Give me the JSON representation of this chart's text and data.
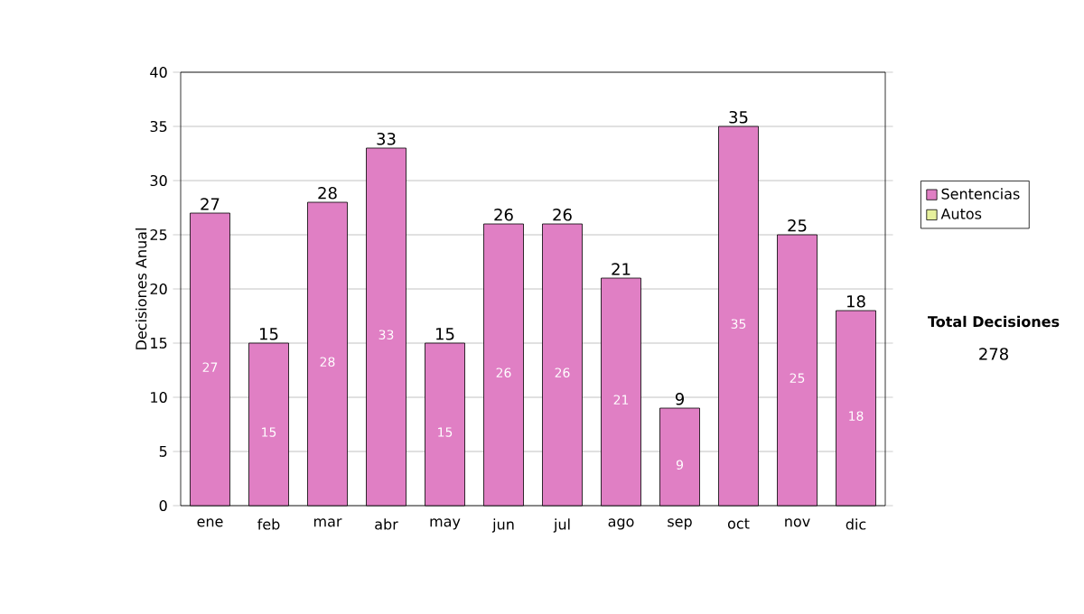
{
  "chart_data": {
    "type": "bar",
    "ylabel": "Decisiones Anual",
    "categories": [
      "ene",
      "feb",
      "mar",
      "abr",
      "may",
      "jun",
      "jul",
      "ago",
      "sep",
      "oct",
      "nov",
      "dic"
    ],
    "series": [
      {
        "name": "Sentencias",
        "color": "#e07fc4",
        "values": [
          27,
          15,
          28,
          33,
          15,
          26,
          26,
          21,
          9,
          35,
          25,
          18
        ]
      },
      {
        "name": "Autos",
        "color": "#e6f09c",
        "values": [
          null,
          null,
          null,
          null,
          null,
          null,
          null,
          null,
          null,
          null,
          null,
          null
        ]
      }
    ],
    "stacked": true,
    "data_labels": true,
    "totals": [
      "27",
      "15",
      "28",
      "33",
      "15",
      "26",
      "26",
      "21",
      "9",
      "35",
      "25",
      "18"
    ],
    "ylim": [
      0,
      40
    ],
    "yticks": [
      0,
      5,
      10,
      15,
      20,
      25,
      30,
      35,
      40
    ],
    "grid": "y",
    "legend": "right",
    "annotations": [
      "Total Decisiones",
      "278"
    ]
  }
}
